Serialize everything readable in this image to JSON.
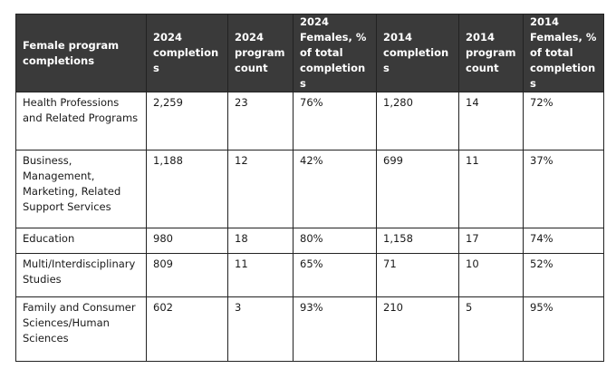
{
  "headers": [
    "Female program completions",
    "2024 completions",
    "2024 program count",
    "2024 Females, % of total completions",
    "2014 completions",
    "2014 program count",
    "2014 Females, % of total completions"
  ],
  "rows": [
    [
      "Health Professions and Related Programs",
      "2,259",
      "23",
      "76%",
      "1,280",
      "14",
      "72%"
    ],
    [
      "Business, Management, Marketing, Related Support Services",
      "1,188",
      "12",
      "42%",
      "699",
      "11",
      "37%"
    ],
    [
      "Education",
      "980",
      "18",
      "80%",
      "1,158",
      "17",
      "74%"
    ],
    [
      "Multi/Interdisciplinary Studies",
      "809",
      "11",
      "65%",
      "71",
      "10",
      "52%"
    ],
    [
      "Family and Consumer Sciences/Human Sciences",
      "602",
      "3",
      "93%",
      "210",
      "5",
      "95%"
    ]
  ]
}
